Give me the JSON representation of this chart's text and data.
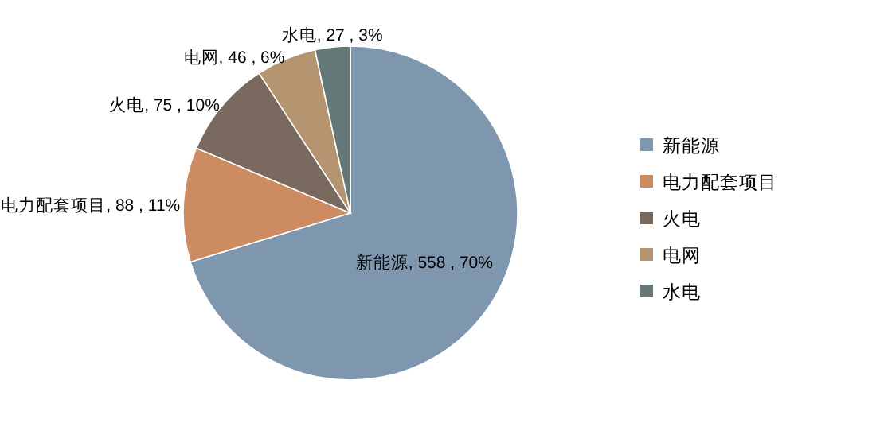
{
  "chart_data": {
    "type": "pie",
    "categories": [
      "新能源",
      "电力配套项目",
      "火电",
      "电网",
      "水电"
    ],
    "values": [
      558,
      88,
      75,
      46,
      27
    ],
    "colors": [
      "#7f97ae",
      "#cc8b60",
      "#7a695e",
      "#b59570",
      "#647878"
    ],
    "value_labels": [
      "新能源, 558 , 70%",
      "电力配套项目, 88 , 11%",
      "火电, 75 , 10%",
      "电网, 46 , 6%",
      "水电, 27 , 3%"
    ],
    "legend": "right"
  }
}
